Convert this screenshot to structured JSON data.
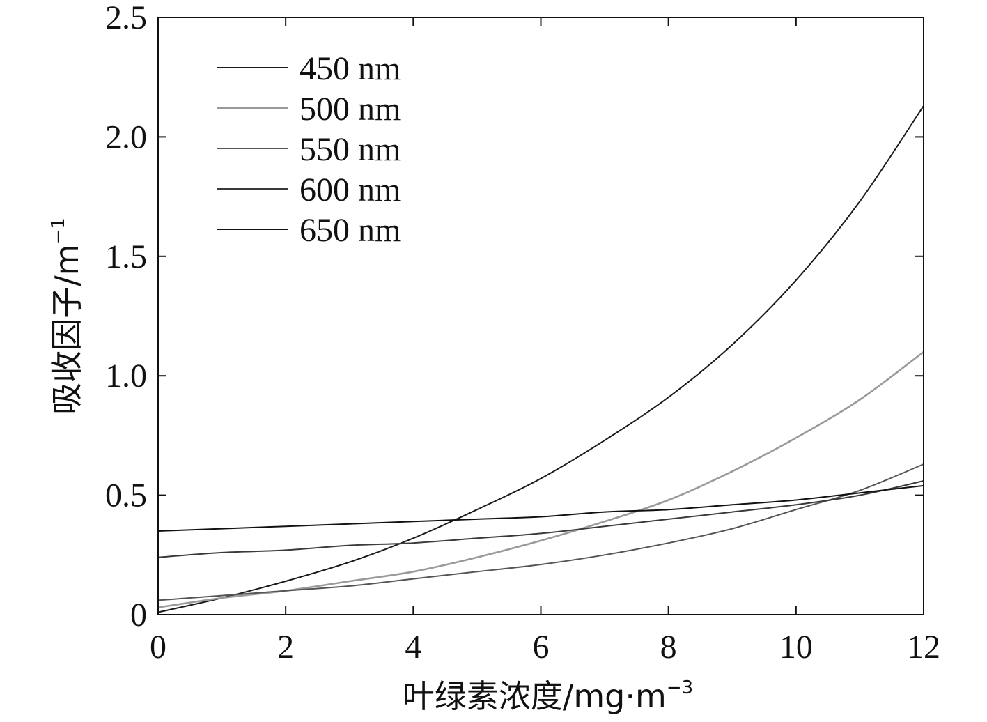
{
  "chart_data": {
    "type": "line",
    "title": "",
    "xlabel": "叶绿素浓度/mg·m",
    "xlabel_sup": "−3",
    "ylabel": "吸收因子/m",
    "ylabel_sup": "−1",
    "xlim": [
      0,
      12
    ],
    "ylim": [
      0,
      2.5
    ],
    "x_ticks": [
      "0",
      "2",
      "4",
      "6",
      "8",
      "10",
      "12"
    ],
    "y_ticks": [
      "0",
      "0.5",
      "1.0",
      "1.5",
      "2.0",
      "2.5"
    ],
    "grid": false,
    "legend_position": "top-left",
    "x": [
      0,
      1,
      2,
      3,
      4,
      5,
      6,
      7,
      8,
      9,
      10,
      11,
      12
    ],
    "series": [
      {
        "name": "450 nm",
        "color": "#1a1a1a",
        "values": [
          0.01,
          0.07,
          0.14,
          0.22,
          0.32,
          0.44,
          0.57,
          0.73,
          0.91,
          1.13,
          1.4,
          1.73,
          2.13
        ]
      },
      {
        "name": "500 nm",
        "color": "#9a9a9a",
        "values": [
          0.03,
          0.07,
          0.1,
          0.14,
          0.18,
          0.24,
          0.31,
          0.39,
          0.48,
          0.6,
          0.74,
          0.9,
          1.1
        ]
      },
      {
        "name": "550 nm",
        "color": "#555555",
        "values": [
          0.06,
          0.08,
          0.1,
          0.12,
          0.15,
          0.18,
          0.21,
          0.25,
          0.3,
          0.36,
          0.44,
          0.52,
          0.63
        ]
      },
      {
        "name": "600 nm",
        "color": "#3a3a3a",
        "values": [
          0.24,
          0.26,
          0.27,
          0.29,
          0.3,
          0.32,
          0.34,
          0.37,
          0.4,
          0.43,
          0.46,
          0.5,
          0.56
        ]
      },
      {
        "name": "650 nm",
        "color": "#111111",
        "values": [
          0.35,
          0.36,
          0.37,
          0.38,
          0.39,
          0.4,
          0.41,
          0.43,
          0.44,
          0.46,
          0.48,
          0.51,
          0.54
        ]
      }
    ]
  }
}
